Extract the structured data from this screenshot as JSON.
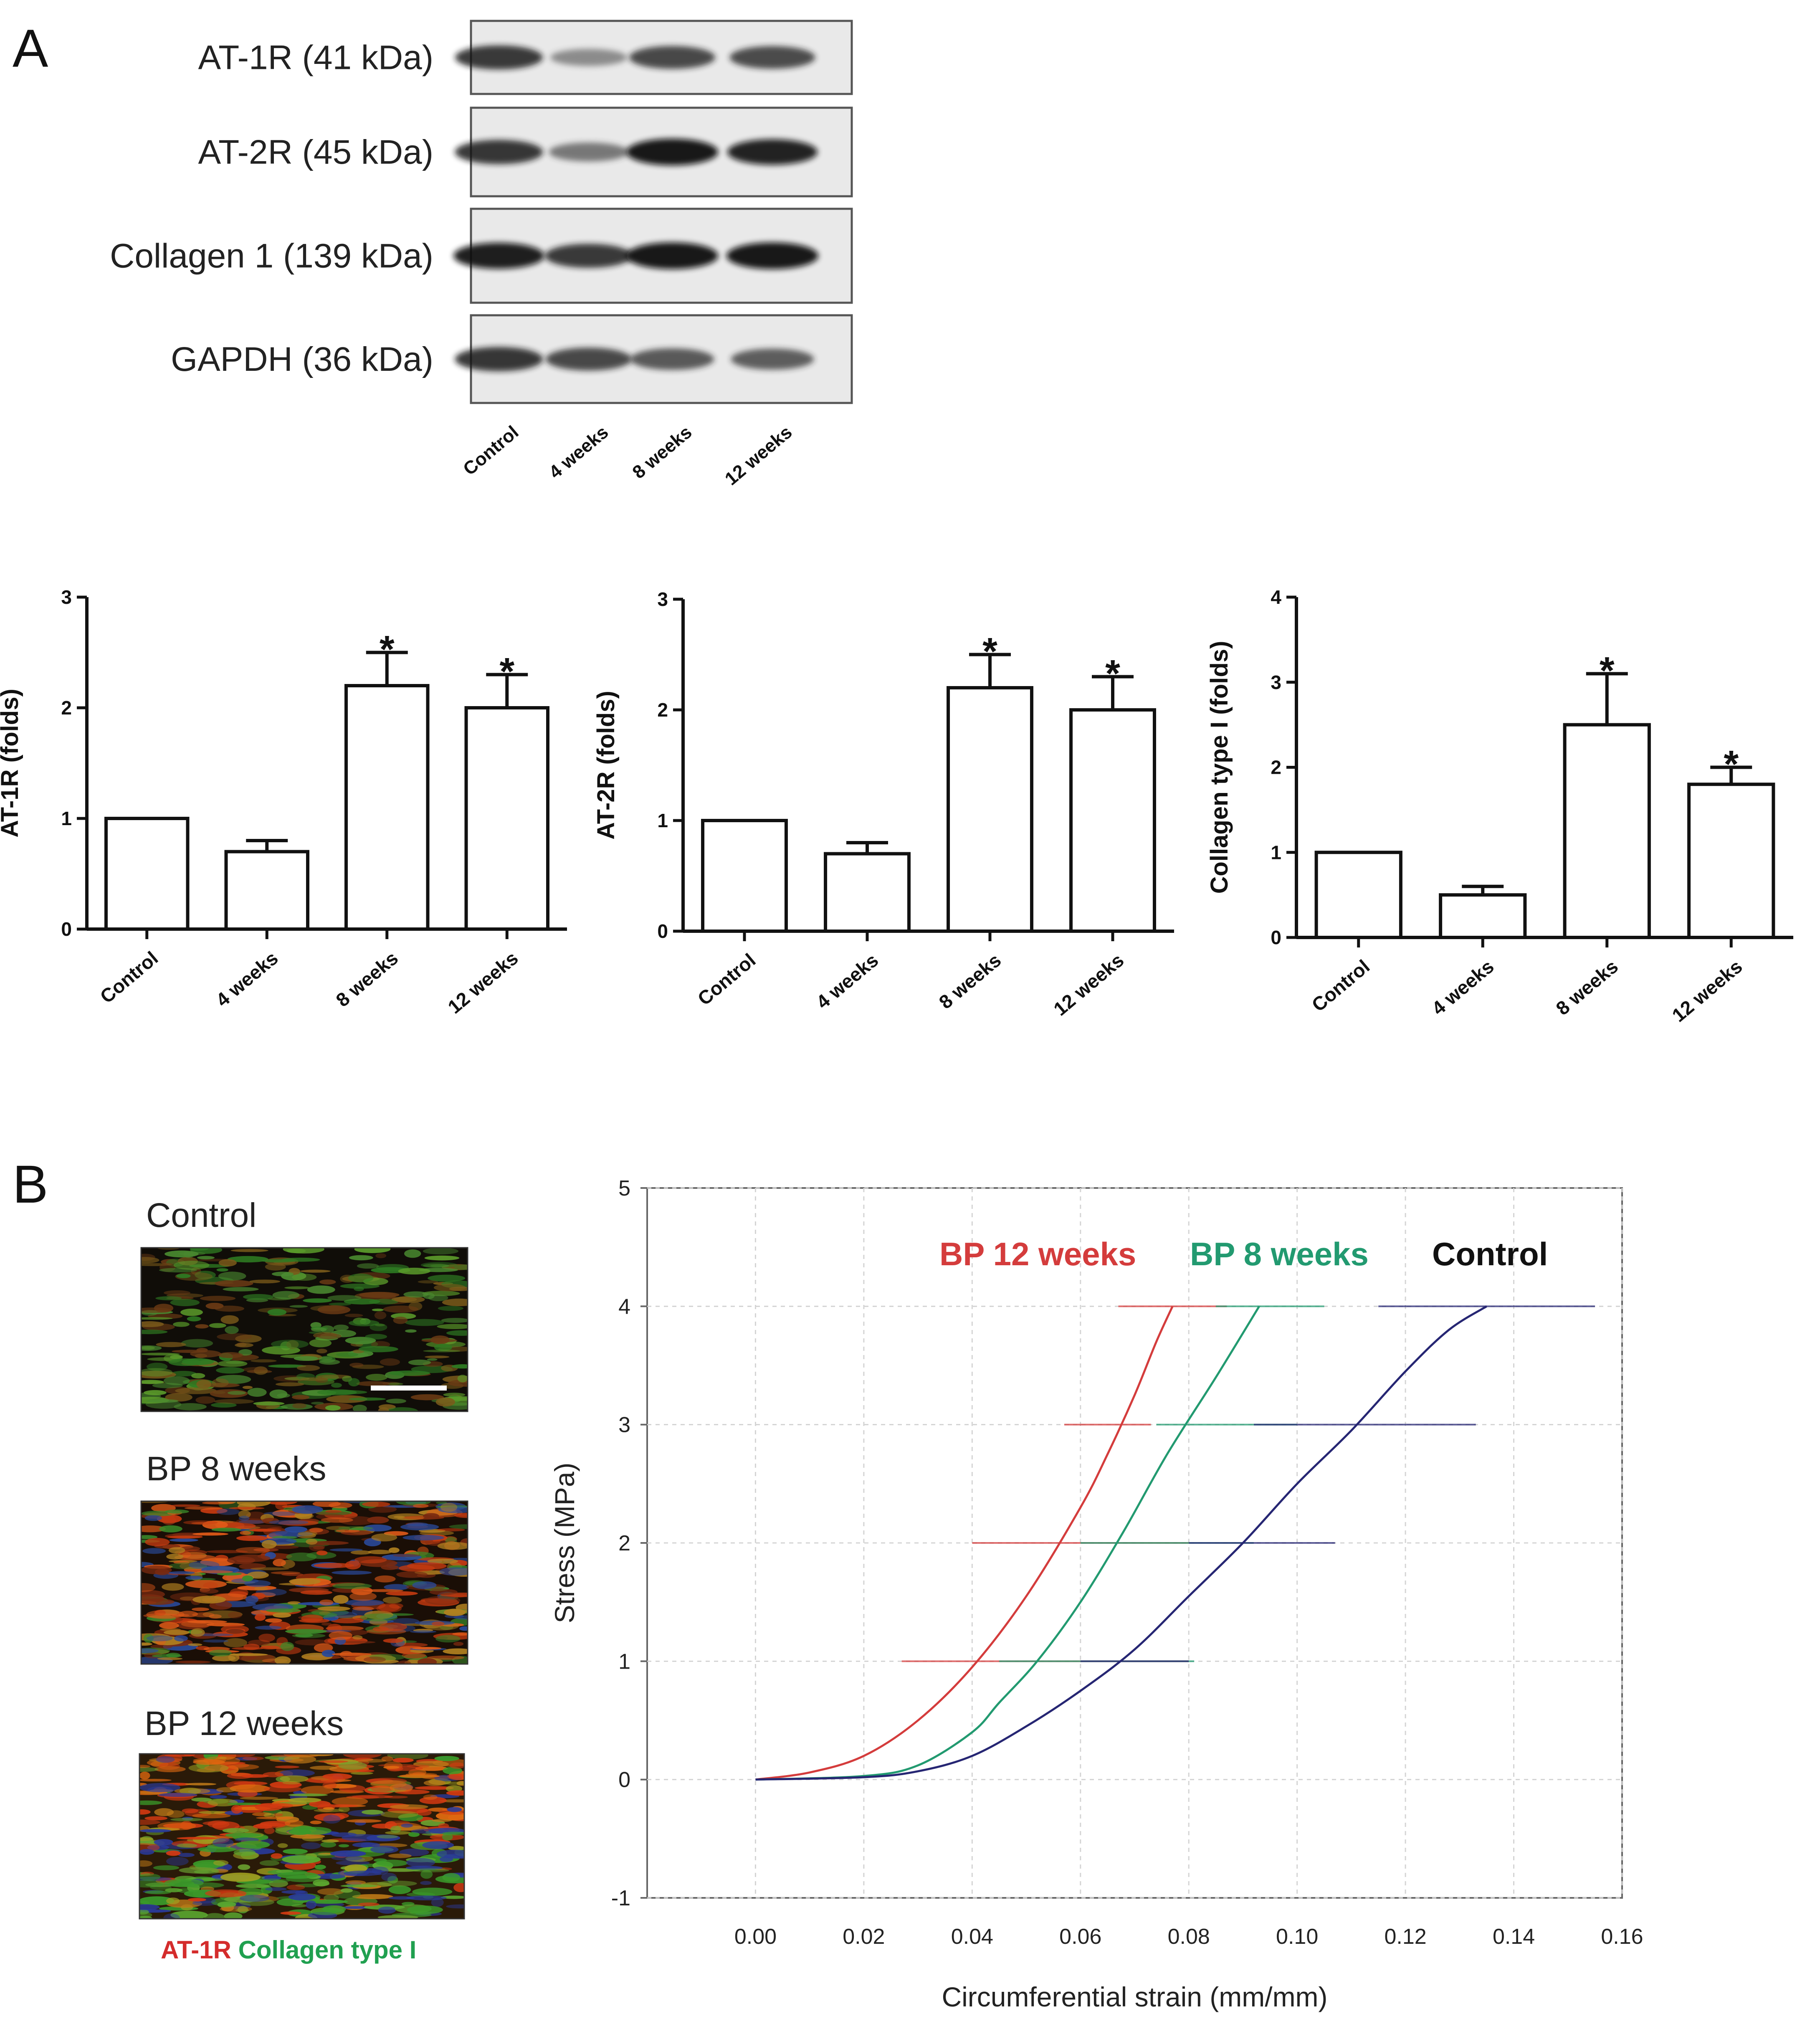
{
  "panels": {
    "a": "A",
    "b": "B"
  },
  "western_blot": {
    "bands": [
      {
        "label": "AT-1R (41 kDa)",
        "intensity": [
          0.8,
          0.28,
          0.72,
          0.7
        ]
      },
      {
        "label": "AT-2R (45 kDa)",
        "intensity": [
          0.82,
          0.42,
          1.0,
          0.92
        ]
      },
      {
        "label": "Collagen 1 (139 kDa)",
        "intensity": [
          0.95,
          0.8,
          1.0,
          1.0
        ]
      },
      {
        "label": "GAPDH (36 kDa)",
        "intensity": [
          0.82,
          0.72,
          0.62,
          0.58
        ]
      }
    ],
    "lanes": [
      "Control",
      "4 weeks",
      "8 weeks",
      "12 weeks"
    ]
  },
  "chart_data": [
    {
      "type": "bar",
      "categories": [
        "Control",
        "4 weeks",
        "8 weeks",
        "12 weeks"
      ],
      "values": [
        1.0,
        0.7,
        2.2,
        2.0
      ],
      "errors": [
        0,
        0.1,
        0.3,
        0.3
      ],
      "significant": [
        false,
        false,
        true,
        true
      ],
      "star_label": "*",
      "ylabel": "AT-1R (folds)",
      "ylim": [
        0,
        3
      ],
      "yticks": [
        "0",
        "1",
        "2",
        "3"
      ]
    },
    {
      "type": "bar",
      "categories": [
        "Control",
        "4 weeks",
        "8 weeks",
        "12 weeks"
      ],
      "values": [
        1.0,
        0.7,
        2.2,
        2.0
      ],
      "errors": [
        0,
        0.1,
        0.3,
        0.3
      ],
      "significant": [
        false,
        false,
        true,
        true
      ],
      "star_label": "*",
      "ylabel": "AT-2R (folds)",
      "ylim": [
        0,
        3
      ],
      "yticks": [
        "0",
        "1",
        "2",
        "3"
      ]
    },
    {
      "type": "bar",
      "categories": [
        "Control",
        "4 weeks",
        "8 weeks",
        "12 weeks"
      ],
      "values": [
        1.0,
        0.5,
        2.5,
        1.8
      ],
      "errors": [
        0,
        0.1,
        0.6,
        0.2
      ],
      "significant": [
        false,
        false,
        true,
        true
      ],
      "star_label": "*",
      "ylabel": "Collagen type I (folds)",
      "ylim": [
        0,
        4
      ],
      "yticks": [
        "0",
        "1",
        "2",
        "3",
        "4"
      ]
    },
    {
      "type": "line",
      "xlabel": "Circumferential strain (mm/mm)",
      "ylabel": "Stress (MPa)",
      "xlim": [
        -0.02,
        0.16
      ],
      "ylim": [
        -1,
        5
      ],
      "xticks": [
        "0.00",
        "0.02",
        "0.04",
        "0.06",
        "0.08",
        "0.10",
        "0.12",
        "0.14",
        "0.16"
      ],
      "yticks": [
        "-1",
        "0",
        "1",
        "2",
        "3",
        "4",
        "5"
      ],
      "grid": true,
      "legend_position": "top",
      "series": [
        {
          "name": "BP 12 weeks",
          "color": "#d43c3c",
          "x": [
            0.0,
            0.01,
            0.02,
            0.03,
            0.04,
            0.05,
            0.06,
            0.065,
            0.07,
            0.074,
            0.077
          ],
          "y": [
            0.0,
            0.06,
            0.2,
            0.5,
            0.95,
            1.55,
            2.3,
            2.75,
            3.25,
            3.7,
            4.0
          ],
          "error_x": [
            {
              "y": 1,
              "x_low": 0.027,
              "x_high": 0.08
            },
            {
              "y": 2,
              "x_low": 0.04,
              "x_high": 0.08
            },
            {
              "y": 3,
              "x_low": 0.057,
              "x_high": 0.073
            },
            {
              "y": 4,
              "x_low": 0.067,
              "x_high": 0.087
            }
          ]
        },
        {
          "name": "BP 8 weeks",
          "color": "#229a70",
          "x": [
            0.0,
            0.02,
            0.03,
            0.04,
            0.045,
            0.052,
            0.06,
            0.068,
            0.076,
            0.085,
            0.093
          ],
          "y": [
            0.0,
            0.03,
            0.12,
            0.4,
            0.65,
            1.0,
            1.5,
            2.1,
            2.75,
            3.4,
            4.0
          ],
          "error_x": [
            {
              "y": 1,
              "x_low": 0.045,
              "x_high": 0.081
            },
            {
              "y": 2,
              "x_low": 0.06,
              "x_high": 0.092
            },
            {
              "y": 3,
              "x_low": 0.074,
              "x_high": 0.1
            },
            {
              "y": 4,
              "x_low": 0.085,
              "x_high": 0.105
            }
          ]
        },
        {
          "name": "Control",
          "color": "#262673",
          "x": [
            0.0,
            0.02,
            0.03,
            0.04,
            0.05,
            0.06,
            0.07,
            0.08,
            0.09,
            0.1,
            0.11,
            0.12,
            0.128,
            0.135
          ],
          "y": [
            0.0,
            0.02,
            0.07,
            0.2,
            0.45,
            0.75,
            1.1,
            1.55,
            2.0,
            2.5,
            2.95,
            3.45,
            3.8,
            4.0
          ],
          "error_x": [
            {
              "y": 1,
              "x_low": 0.06,
              "x_high": 0.08
            },
            {
              "y": 2,
              "x_low": 0.08,
              "x_high": 0.107
            },
            {
              "y": 3,
              "x_low": 0.092,
              "x_high": 0.133
            },
            {
              "y": 4,
              "x_low": 0.115,
              "x_high": 0.155
            }
          ]
        }
      ]
    }
  ],
  "immunofluorescence": {
    "images": [
      {
        "title": "Control",
        "palette": "control",
        "scale_bar": true
      },
      {
        "title": "BP 8 weeks",
        "palette": "bp8",
        "scale_bar": false
      },
      {
        "title": "BP 12 weeks",
        "palette": "bp12",
        "scale_bar": false
      }
    ],
    "caption": [
      {
        "text": "AT-1R",
        "color": "#d42c2c"
      },
      {
        "text": "Collagen type I",
        "color": "#20a050"
      }
    ]
  }
}
